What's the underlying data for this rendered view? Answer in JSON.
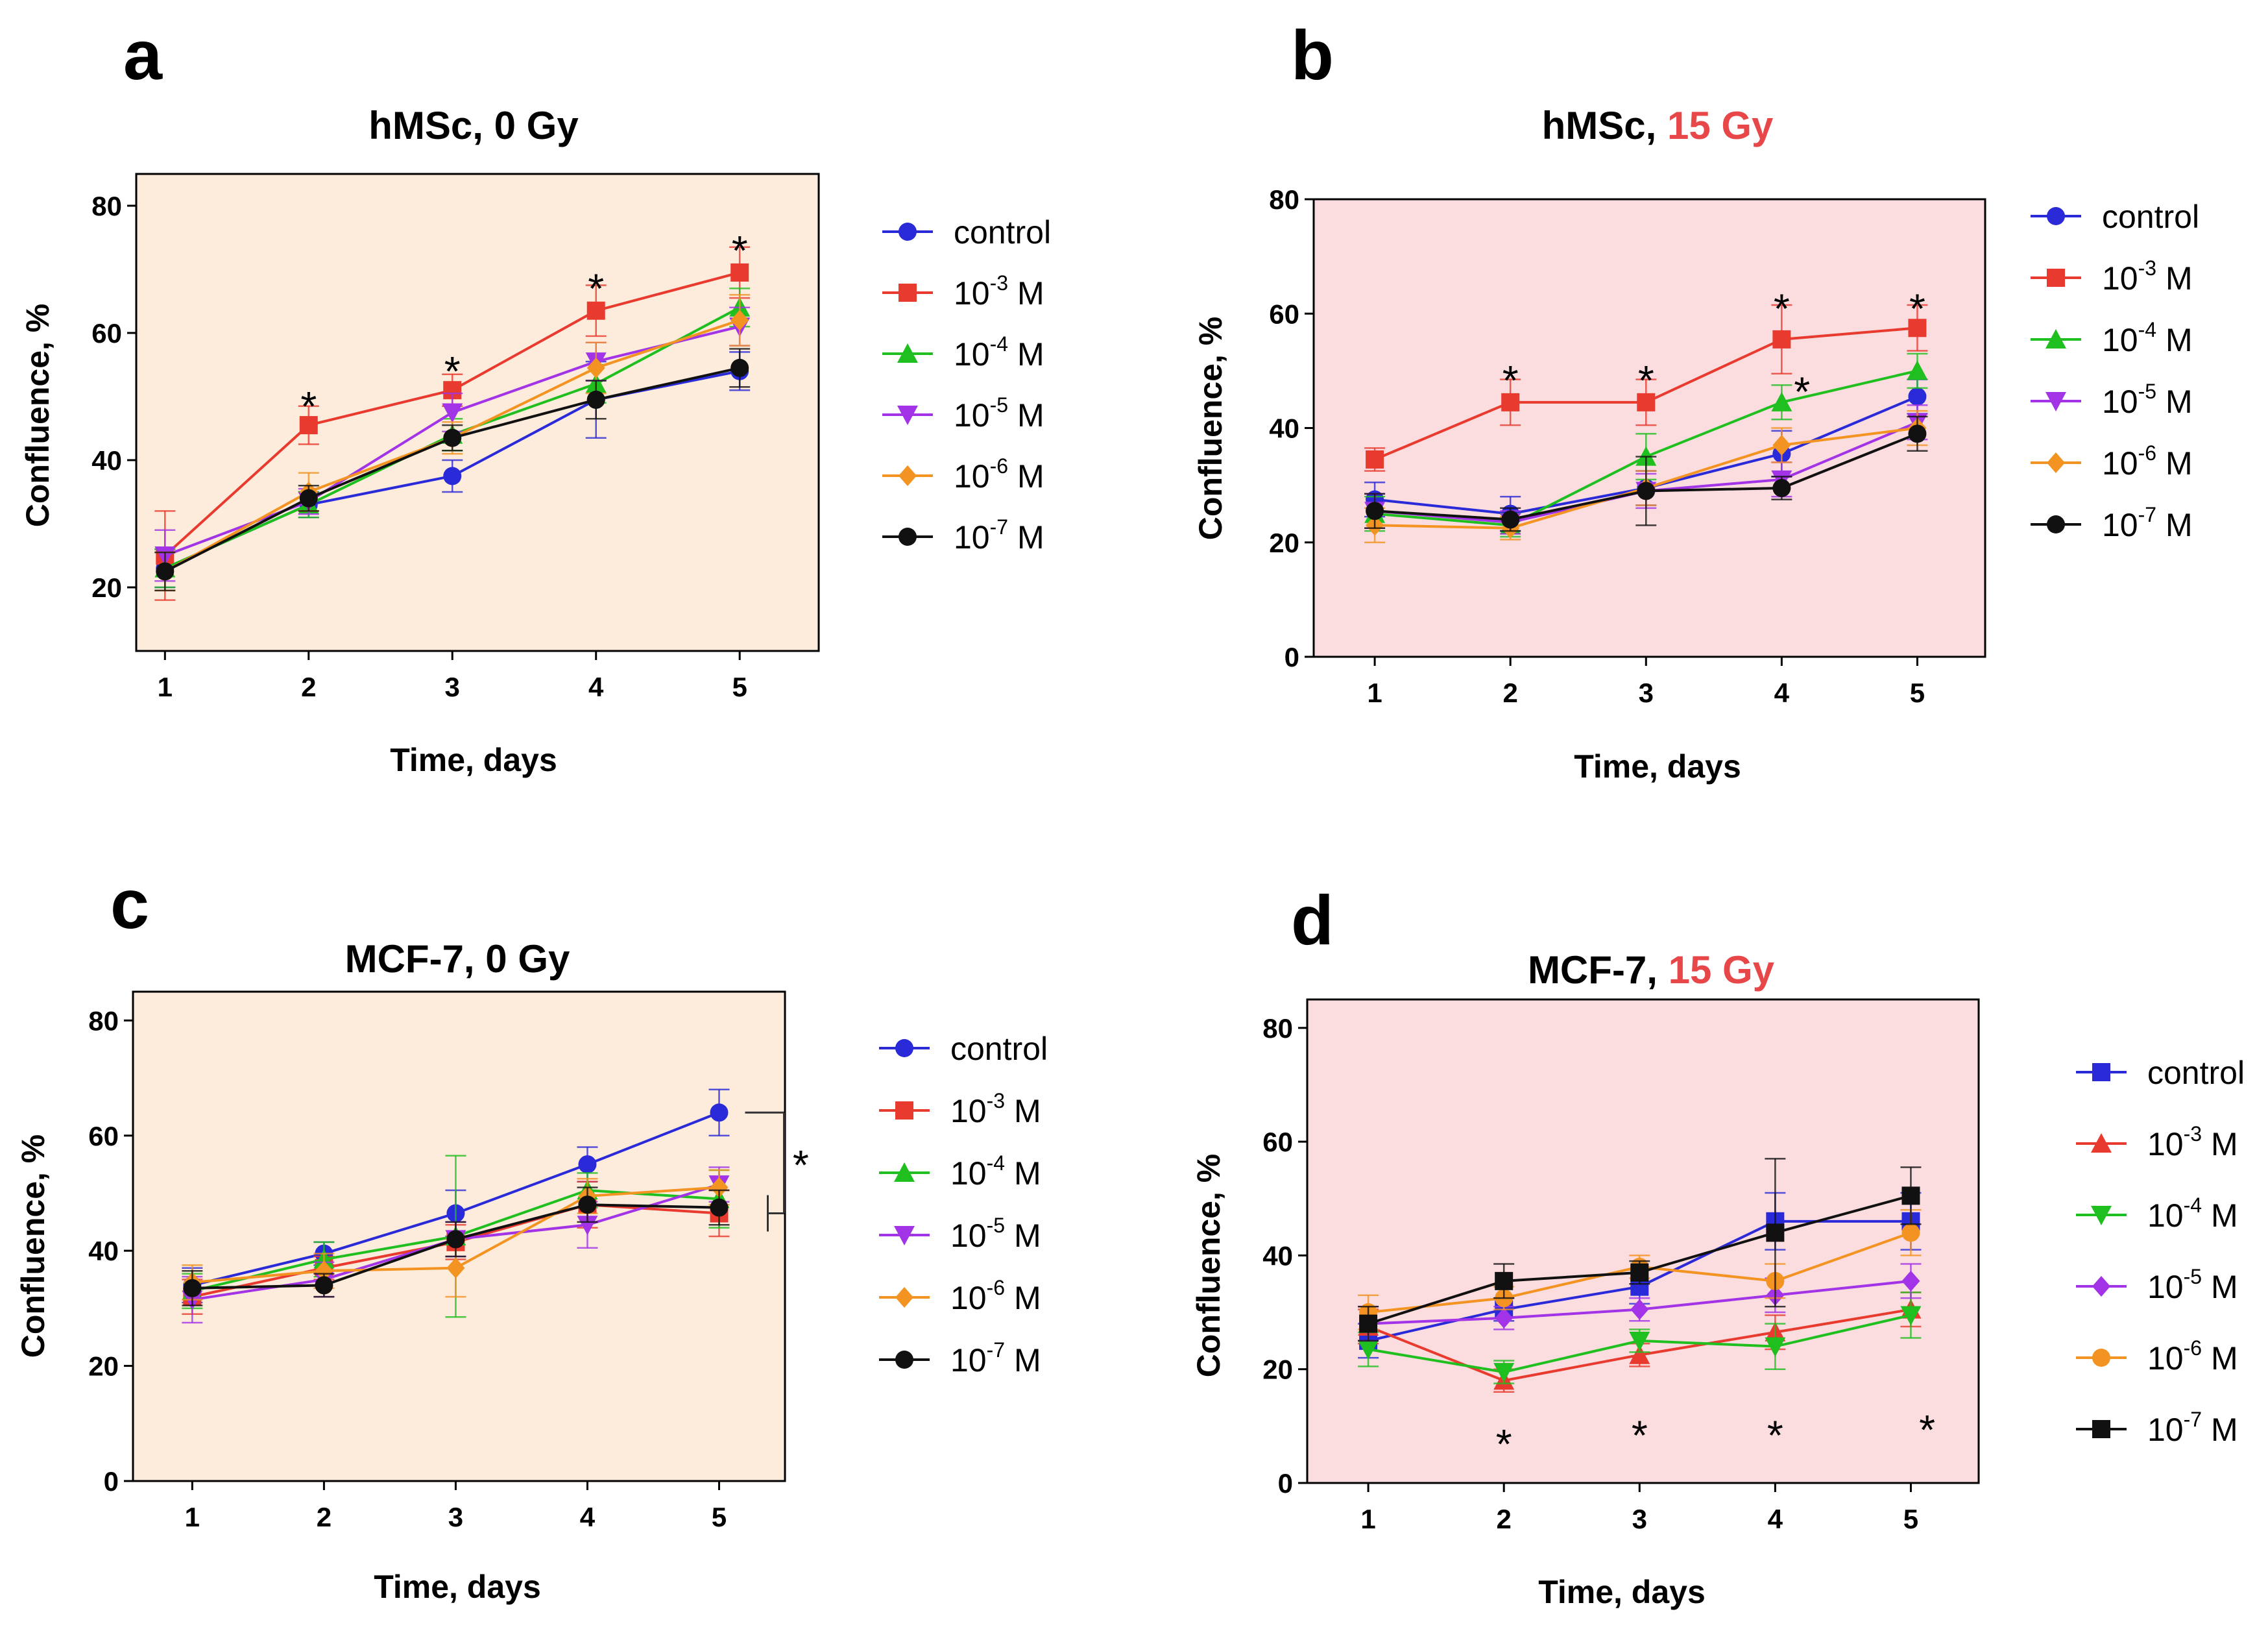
{
  "chart_data": [
    {
      "panel": "a",
      "type": "line",
      "title": {
        "prefix": "hMSc, ",
        "suffix": "0 Gy"
      },
      "xlabel": "Time, days",
      "ylabel": "Confluence, %",
      "xlim": [
        0.8,
        5.55
      ],
      "ylim": [
        10,
        85
      ],
      "xticks": [
        1,
        2,
        3,
        4,
        5
      ],
      "yticks": [
        20,
        40,
        60,
        80
      ],
      "background": "#fdebdc",
      "legend_position": "right",
      "categories": [
        1,
        2,
        3,
        4,
        5
      ],
      "series": [
        {
          "name": "control",
          "sup": "",
          "unit": "",
          "color": "#2a2ad8",
          "marker": "circle",
          "values": [
            23,
            33,
            37.5,
            49.5,
            54
          ],
          "errors": [
            3,
            2,
            2.5,
            6,
            3
          ]
        },
        {
          "name": "10",
          "sup": "-3",
          "unit": " M",
          "color": "#e83a2e",
          "marker": "square",
          "values": [
            25,
            45.5,
            51,
            63.5,
            69.5
          ],
          "errors": [
            7,
            3,
            2.5,
            4,
            4
          ]
        },
        {
          "name": "10",
          "sup": "-4",
          "unit": " M",
          "color": "#1fbf1f",
          "marker": "triangle-up",
          "values": [
            23,
            33,
            44,
            52,
            64
          ],
          "errors": [
            3,
            2,
            2.5,
            3,
            3
          ]
        },
        {
          "name": "10",
          "sup": "-5",
          "unit": " M",
          "color": "#a233e6",
          "marker": "triangle-down",
          "values": [
            25,
            33.5,
            47.5,
            55.5,
            61
          ],
          "errors": [
            4,
            2,
            3,
            3,
            3
          ]
        },
        {
          "name": "10",
          "sup": "-6",
          "unit": " M",
          "color": "#f39321",
          "marker": "diamond",
          "values": [
            22.5,
            35,
            43.5,
            54.5,
            62
          ],
          "errors": [
            3,
            3,
            2.5,
            4,
            4
          ]
        },
        {
          "name": "10",
          "sup": "-7",
          "unit": " M",
          "color": "#111111",
          "marker": "circle",
          "values": [
            22.5,
            34,
            43.5,
            49.5,
            54.5
          ],
          "errors": [
            3,
            2,
            2,
            3,
            3
          ]
        }
      ],
      "asterisks": [
        {
          "x": 2,
          "y": 49.5,
          "text": "*"
        },
        {
          "x": 3,
          "y": 55,
          "text": "*"
        },
        {
          "x": 4,
          "y": 68,
          "text": "*"
        },
        {
          "x": 5,
          "y": 74,
          "text": "*"
        }
      ],
      "legend_pos": "outside-right"
    },
    {
      "panel": "b",
      "type": "line",
      "title": {
        "prefix": "hMSc, ",
        "suffix": "15 Gy"
      },
      "xlabel": "Time, days",
      "ylabel": "Confluence, %",
      "xlim": [
        0.55,
        5.5
      ],
      "ylim": [
        0,
        80
      ],
      "xticks": [
        1,
        2,
        3,
        4,
        5
      ],
      "yticks": [
        0,
        20,
        40,
        60,
        80
      ],
      "background": "#fbdddf",
      "legend_position": "right",
      "categories": [
        1,
        2,
        3,
        4,
        5
      ],
      "series": [
        {
          "name": "control",
          "sup": "",
          "unit": "",
          "color": "#2a2ad8",
          "marker": "circle",
          "values": [
            27.5,
            25,
            29.5,
            35.5,
            45.5
          ],
          "errors": [
            3,
            3,
            3,
            4,
            3
          ]
        },
        {
          "name": "10",
          "sup": "-3",
          "unit": " M",
          "color": "#e83a2e",
          "marker": "square",
          "values": [
            34.5,
            44.5,
            44.5,
            55.5,
            57.5
          ],
          "errors": [
            2,
            4,
            4,
            6,
            4
          ]
        },
        {
          "name": "10",
          "sup": "-4",
          "unit": " M",
          "color": "#1fbf1f",
          "marker": "triangle-up",
          "values": [
            25,
            23,
            35,
            44.5,
            50
          ],
          "errors": [
            3,
            2,
            4,
            3,
            3
          ]
        },
        {
          "name": "10",
          "sup": "-5",
          "unit": " M",
          "color": "#a233e6",
          "marker": "triangle-down",
          "values": [
            25.5,
            23.5,
            29,
            31,
            41
          ],
          "errors": [
            3,
            2,
            3,
            3,
            3
          ]
        },
        {
          "name": "10",
          "sup": "-6",
          "unit": " M",
          "color": "#f39321",
          "marker": "diamond",
          "values": [
            23,
            22.5,
            29.5,
            37,
            40
          ],
          "errors": [
            3,
            2,
            3,
            3,
            3
          ]
        },
        {
          "name": "10",
          "sup": "-7",
          "unit": " M",
          "color": "#111111",
          "marker": "circle",
          "values": [
            25.5,
            24,
            29,
            29.5,
            39
          ],
          "errors": [
            3,
            2,
            6,
            2,
            3
          ]
        }
      ],
      "asterisks": [
        {
          "x": 2,
          "y": 49.5,
          "text": "*"
        },
        {
          "x": 3,
          "y": 49.5,
          "text": "*"
        },
        {
          "x": 4,
          "y": 62,
          "text": "*"
        },
        {
          "x": 4.15,
          "y": 47.5,
          "text": "*"
        },
        {
          "x": 5,
          "y": 62,
          "text": "*"
        }
      ],
      "legend_pos": "outside-right"
    },
    {
      "panel": "c",
      "type": "line",
      "title": {
        "prefix": "MCF-7, ",
        "suffix": "0 Gy"
      },
      "xlabel": "Time, days",
      "ylabel": "Confluence, %",
      "xlim": [
        0.55,
        5.5
      ],
      "ylim": [
        0,
        85
      ],
      "xticks": [
        1,
        2,
        3,
        4,
        5
      ],
      "yticks": [
        0,
        20,
        40,
        60,
        80
      ],
      "background": "#fdebdc",
      "legend_position": "right",
      "categories": [
        1,
        2,
        3,
        4,
        5
      ],
      "series": [
        {
          "name": "control",
          "sup": "",
          "unit": "",
          "color": "#2a2ad8",
          "marker": "circle",
          "values": [
            34,
            39.5,
            46.5,
            55,
            64
          ],
          "errors": [
            3,
            2,
            4,
            3,
            4
          ]
        },
        {
          "name": "10",
          "sup": "-3",
          "unit": " M",
          "color": "#e83a2e",
          "marker": "square",
          "values": [
            32,
            37,
            41.5,
            48,
            46.5
          ],
          "errors": [
            3,
            2,
            3,
            4,
            4
          ]
        },
        {
          "name": "10",
          "sup": "-4",
          "unit": " M",
          "color": "#1fbf1f",
          "marker": "triangle-up",
          "values": [
            33,
            38.5,
            42.5,
            50.5,
            49
          ],
          "errors": [
            3,
            3,
            14,
            3,
            5
          ]
        },
        {
          "name": "10",
          "sup": "-5",
          "unit": " M",
          "color": "#a233e6",
          "marker": "triangle-down",
          "values": [
            31.5,
            35,
            42,
            44.5,
            51.5
          ],
          "errors": [
            4,
            3,
            3,
            4,
            3
          ]
        },
        {
          "name": "10",
          "sup": "-6",
          "unit": " M",
          "color": "#f39321",
          "marker": "diamond",
          "values": [
            34.5,
            36.5,
            37,
            49.5,
            51
          ],
          "errors": [
            3,
            3,
            5,
            3,
            3
          ]
        },
        {
          "name": "10",
          "sup": "-7",
          "unit": " M",
          "color": "#111111",
          "marker": "circle",
          "values": [
            33.5,
            34,
            42,
            48,
            47.5
          ],
          "errors": [
            3,
            2,
            3,
            3,
            3
          ]
        }
      ],
      "asterisks": [
        {
          "x": 5.62,
          "y": 56,
          "text": "*"
        }
      ],
      "bracket": {
        "x": 5,
        "y_top": 64,
        "y_bottom": 46.5,
        "text": "*"
      },
      "legend_pos": "outside-right"
    },
    {
      "panel": "d",
      "type": "line",
      "title": {
        "prefix": "MCF-7, ",
        "suffix": "15 Gy"
      },
      "xlabel": "Time, days",
      "ylabel": "Confluence, %",
      "xlim": [
        0.55,
        5.5
      ],
      "ylim": [
        0,
        85
      ],
      "xticks": [
        1,
        2,
        3,
        4,
        5
      ],
      "yticks": [
        0,
        20,
        40,
        60,
        80
      ],
      "background": "#fbdddf",
      "legend_position": "right",
      "categories": [
        1,
        2,
        3,
        4,
        5
      ],
      "series": [
        {
          "name": "control",
          "sup": "",
          "unit": "",
          "color": "#2a2ad8",
          "marker": "square",
          "values": [
            25,
            30.5,
            34.5,
            46,
            46
          ],
          "errors": [
            3,
            2,
            3,
            5,
            5
          ]
        },
        {
          "name": "10",
          "sup": "-3",
          "unit": " M",
          "color": "#e83a2e",
          "marker": "triangle-up",
          "values": [
            27.5,
            18,
            22.5,
            26.5,
            30.5
          ],
          "errors": [
            3,
            2,
            2,
            3,
            3
          ]
        },
        {
          "name": "10",
          "sup": "-4",
          "unit": " M",
          "color": "#1fbf1f",
          "marker": "triangle-down",
          "values": [
            23.5,
            19.5,
            25,
            24,
            29.5
          ],
          "errors": [
            3,
            2,
            2,
            4,
            4
          ]
        },
        {
          "name": "10",
          "sup": "-5",
          "unit": " M",
          "color": "#a233e6",
          "marker": "diamond",
          "values": [
            28,
            29,
            30.5,
            33,
            35.5
          ],
          "errors": [
            3,
            2,
            2,
            3,
            3
          ]
        },
        {
          "name": "10",
          "sup": "-6",
          "unit": " M",
          "color": "#f39321",
          "marker": "circle",
          "values": [
            30,
            32.5,
            38,
            35.5,
            44
          ],
          "errors": [
            3,
            2,
            2,
            3,
            4
          ]
        },
        {
          "name": "10",
          "sup": "-7",
          "unit": " M",
          "color": "#111111",
          "marker": "square",
          "values": [
            28,
            35.5,
            37,
            44,
            50.5
          ],
          "errors": [
            3,
            3,
            2,
            13,
            5
          ]
        }
      ],
      "asterisks": [
        {
          "x": 2,
          "y": 8,
          "text": "*"
        },
        {
          "x": 3,
          "y": 9.5,
          "text": "*"
        },
        {
          "x": 4,
          "y": 9.5,
          "text": "*"
        },
        {
          "x": 5.12,
          "y": 10.5,
          "text": "*"
        }
      ],
      "legend_pos": "outside-right"
    }
  ]
}
